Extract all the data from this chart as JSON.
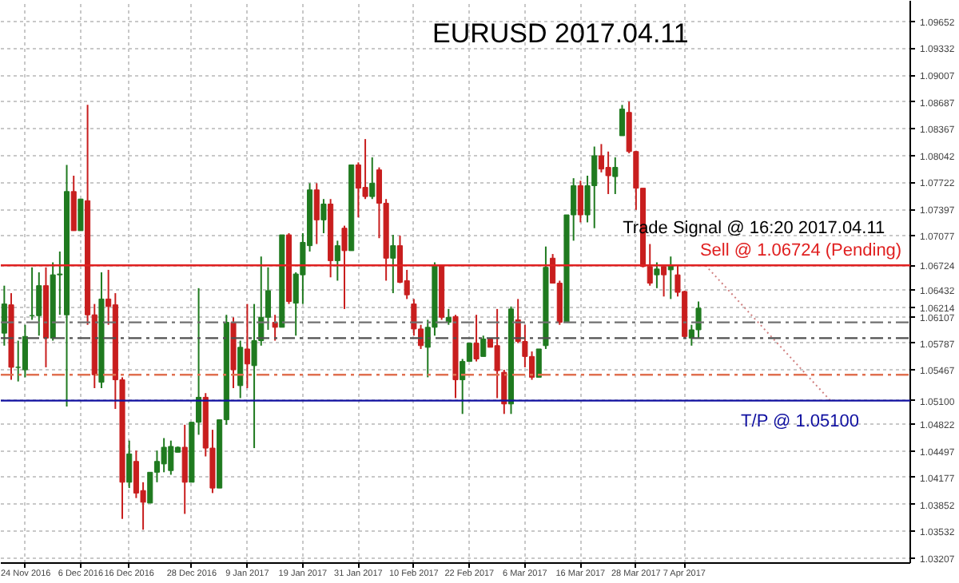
{
  "chart_data": {
    "type": "candlestick",
    "title": "EURUSD  2017.04.11",
    "categories": [
      null,
      null,
      null,
      "24 Nov 2016",
      null,
      null,
      null,
      null,
      null,
      null,
      null,
      "6 Dec 2016",
      null,
      null,
      null,
      null,
      null,
      null,
      "16 Dec 2016",
      null,
      null,
      null,
      null,
      null,
      null,
      null,
      null,
      "28 Dec 2016",
      null,
      null,
      null,
      null,
      null,
      null,
      null,
      "9 Jan 2017",
      null,
      null,
      null,
      null,
      null,
      null,
      null,
      "19 Jan 2017",
      null,
      null,
      null,
      null,
      null,
      null,
      null,
      "31 Jan 2017",
      null,
      null,
      null,
      null,
      null,
      null,
      null,
      "10 Feb 2017",
      null,
      null,
      null,
      null,
      null,
      null,
      null,
      "22 Feb 2017",
      null,
      null,
      null,
      null,
      null,
      null,
      null,
      "6 Mar 2017",
      null,
      null,
      null,
      null,
      null,
      null,
      null,
      "16 Mar 2017",
      null,
      null,
      null,
      null,
      null,
      null,
      null,
      "28 Mar 2017",
      null,
      null,
      null,
      null,
      null,
      null,
      "7 Apr 2017",
      null,
      null,
      null,
      null,
      null,
      null,
      null,
      null,
      null,
      null,
      null,
      null,
      null,
      null,
      null,
      null,
      null,
      null,
      null,
      null,
      null,
      null,
      null,
      null,
      null,
      null,
      null,
      null,
      null,
      null,
      null,
      null
    ],
    "ohlc": [
      [
        1.0591,
        1.0648,
        1.0576,
        1.0626
      ],
      [
        1.0625,
        1.0639,
        1.0535,
        1.055
      ],
      [
        1.055,
        1.0582,
        1.0533,
        1.055
      ],
      [
        1.0547,
        1.0601,
        1.0538,
        1.0587
      ],
      [
        1.0612,
        1.067,
        1.0607,
        1.0612
      ],
      [
        1.0612,
        1.0664,
        1.0588,
        1.0648
      ],
      [
        1.0648,
        1.067,
        1.055,
        1.0585
      ],
      [
        1.0585,
        1.0676,
        1.0582,
        1.0661
      ],
      [
        1.0661,
        1.0689,
        1.0613,
        1.0662
      ],
      [
        1.0613,
        1.0793,
        1.0503,
        1.0761
      ],
      [
        1.0761,
        1.078,
        1.0714,
        1.0714
      ],
      [
        1.0714,
        1.0752,
        1.0714,
        1.0752
      ],
      [
        1.075,
        1.0865,
        1.0601,
        1.0613
      ],
      [
        1.0613,
        1.0626,
        1.0525,
        1.0541
      ],
      [
        1.0532,
        1.0664,
        1.0525,
        1.0632
      ],
      [
        1.0632,
        1.0667,
        1.0601,
        1.0623
      ],
      [
        1.0625,
        1.0639,
        1.05,
        1.0535
      ],
      [
        1.0535,
        1.0538,
        1.0368,
        1.0412
      ],
      [
        1.0412,
        1.0462,
        1.0405,
        1.0446
      ],
      [
        1.0437,
        1.045,
        1.0393,
        1.0399
      ],
      [
        1.0402,
        1.0412,
        1.0355,
        1.0388
      ],
      [
        1.0387,
        1.0424,
        1.0387,
        1.0424
      ],
      [
        1.0424,
        1.045,
        1.0412,
        1.0437
      ],
      [
        1.0434,
        1.0465,
        1.0424,
        1.0454
      ],
      [
        1.0426,
        1.0462,
        1.0421,
        1.0455
      ],
      [
        1.0448,
        1.0455,
        1.0448,
        1.0454
      ],
      [
        1.0454,
        1.0481,
        1.0374,
        1.0412
      ],
      [
        1.0412,
        1.0484,
        1.0412,
        1.0484
      ],
      [
        1.0484,
        1.0645,
        1.0469,
        1.0514
      ],
      [
        1.0514,
        1.0519,
        1.0443,
        1.0453
      ],
      [
        1.0453,
        1.0475,
        1.0399,
        1.0405
      ],
      [
        1.0405,
        1.0487,
        1.0405,
        1.0487
      ],
      [
        1.0487,
        1.0613,
        1.0481,
        1.0604
      ],
      [
        1.0604,
        1.061,
        1.0525,
        1.0547
      ],
      [
        1.0528,
        1.0582,
        1.0513,
        1.0574
      ],
      [
        1.0572,
        1.0626,
        1.0525,
        1.0554
      ],
      [
        1.0552,
        1.0626,
        1.0453,
        1.0582
      ],
      [
        1.0582,
        1.0683,
        1.0576,
        1.061
      ],
      [
        1.061,
        1.067,
        1.0595,
        1.0642
      ],
      [
        1.0604,
        1.0613,
        1.0582,
        1.0598
      ],
      [
        1.0598,
        1.0709,
        1.0598,
        1.0709
      ],
      [
        1.0709,
        1.0711,
        1.0626,
        1.0629
      ],
      [
        1.0627,
        1.0664,
        1.0588,
        1.0662
      ],
      [
        1.0661,
        1.0711,
        1.0626,
        1.07
      ],
      [
        1.0696,
        1.0771,
        1.0689,
        1.0763
      ],
      [
        1.0763,
        1.0771,
        1.0698,
        1.0727
      ],
      [
        1.0727,
        1.0752,
        1.0711,
        1.0746
      ],
      [
        1.0746,
        1.0752,
        1.0658,
        1.0678
      ],
      [
        1.0678,
        1.0702,
        1.0654,
        1.0696
      ],
      [
        1.0717,
        1.072,
        1.062,
        1.069
      ],
      [
        1.069,
        1.0793,
        1.069,
        1.0793
      ],
      [
        1.0793,
        1.0796,
        1.073,
        1.0765
      ],
      [
        1.0766,
        1.0824,
        1.0752,
        1.0755
      ],
      [
        1.0755,
        1.0802,
        1.0752,
        1.0771
      ],
      [
        1.0787,
        1.079,
        1.0705,
        1.0747
      ],
      [
        1.0747,
        1.0752,
        1.0654,
        1.0681
      ],
      [
        1.0681,
        1.0709,
        1.0639,
        1.0696
      ],
      [
        1.0696,
        1.0708,
        1.0651,
        1.0652
      ],
      [
        1.0654,
        1.0667,
        1.0632,
        1.0637
      ],
      [
        1.0626,
        1.0632,
        1.0588,
        1.0596
      ],
      [
        1.0596,
        1.0601,
        1.0572,
        1.0576
      ],
      [
        1.0574,
        1.0607,
        1.0538,
        1.0598
      ],
      [
        1.0598,
        1.0676,
        1.0588,
        1.0673
      ],
      [
        1.0673,
        1.0673,
        1.0607,
        1.061
      ],
      [
        1.0604,
        1.062,
        1.0601,
        1.061
      ],
      [
        1.0611,
        1.0613,
        1.0513,
        1.0535
      ],
      [
        1.0535,
        1.056,
        1.0494,
        1.0557
      ],
      [
        1.0557,
        1.0579,
        1.0557,
        1.0579
      ],
      [
        1.0579,
        1.0613,
        1.0557,
        1.056
      ],
      [
        1.0563,
        1.0588,
        1.0563,
        1.0584
      ],
      [
        1.0584,
        1.0584,
        1.0574,
        1.0574
      ],
      [
        1.0576,
        1.062,
        1.0513,
        1.0546
      ],
      [
        1.0544,
        1.0547,
        1.0494,
        1.0506
      ],
      [
        1.0506,
        1.0623,
        1.0494,
        1.062
      ],
      [
        1.0607,
        1.0632,
        1.0579,
        1.0581
      ],
      [
        1.0581,
        1.0601,
        1.055,
        1.0563
      ],
      [
        1.0563,
        1.0569,
        1.0535,
        1.0538
      ],
      [
        1.0538,
        1.0572,
        1.0538,
        1.0572
      ],
      [
        1.0576,
        1.0695,
        1.0572,
        1.067
      ],
      [
        1.0681,
        1.0686,
        1.0651,
        1.0651
      ],
      [
        1.0651,
        1.0654,
        1.0601,
        1.0604
      ],
      [
        1.0604,
        1.0733,
        1.0604,
        1.0733
      ],
      [
        1.0733,
        1.0777,
        1.0702,
        1.0768
      ],
      [
        1.0768,
        1.0774,
        1.0724,
        1.0733
      ],
      [
        1.0733,
        1.078,
        1.0724,
        1.0768
      ],
      [
        1.0768,
        1.0815,
        1.0717,
        1.0804
      ],
      [
        1.0804,
        1.0818,
        1.0784,
        1.0788
      ],
      [
        1.079,
        1.0809,
        1.0758,
        1.078
      ],
      [
        1.0779,
        1.0802,
        1.0758,
        1.079
      ],
      [
        1.0828,
        1.0865,
        1.0828,
        1.086
      ],
      [
        1.0856,
        1.0869,
        1.0807,
        1.0809
      ],
      [
        1.0809,
        1.081,
        1.0739,
        1.0765
      ],
      [
        1.0765,
        1.0765,
        1.067,
        1.0671
      ],
      [
        1.0671,
        1.0698,
        1.0648,
        1.0651
      ],
      [
        1.0661,
        1.0676,
        1.0645,
        1.0668
      ],
      [
        1.0671,
        1.0673,
        1.0635,
        1.0661
      ],
      [
        1.0667,
        1.0683,
        1.0632,
        1.0673
      ],
      [
        1.0661,
        1.0673,
        1.0635,
        1.064
      ],
      [
        1.0641,
        1.0642,
        1.0585,
        1.0587
      ],
      [
        1.0585,
        1.0601,
        1.0576,
        1.0595
      ],
      [
        1.0595,
        1.0629,
        1.0585,
        1.0621
      ],
      null,
      null,
      null,
      null,
      null,
      null,
      null,
      null,
      null,
      null,
      null,
      null,
      null,
      null,
      null,
      null,
      null,
      null,
      null,
      null,
      null,
      null,
      null,
      null,
      null,
      null,
      null,
      null,
      null,
      null
    ],
    "series": [
      {
        "type": "line",
        "values": [
          null,
          null,
          null,
          null,
          null,
          null,
          null,
          null,
          null,
          null,
          null,
          null,
          null,
          null,
          null,
          null,
          null,
          null,
          null,
          null,
          null,
          null,
          null,
          null,
          null,
          null,
          null,
          null,
          null,
          null,
          null,
          null,
          null,
          null,
          null,
          null,
          null,
          null,
          null,
          null,
          null,
          null,
          null,
          null,
          null,
          null,
          null,
          null,
          null,
          null,
          null,
          null,
          null,
          null,
          null,
          null,
          null,
          null,
          null,
          null,
          null,
          null,
          null,
          null,
          null,
          null,
          null,
          null,
          null,
          null,
          null,
          null,
          null,
          null,
          null,
          null,
          null,
          null,
          null,
          null,
          null,
          null,
          null,
          null,
          null,
          null,
          null,
          null,
          null,
          null,
          null,
          null,
          null,
          null,
          null,
          null,
          null,
          null,
          null,
          null,
          null,
          1.06724,
          null,
          null,
          null,
          null,
          null,
          null,
          null,
          null,
          null,
          null,
          null,
          null,
          null,
          null,
          null,
          null,
          null,
          1.051,
          null,
          null,
          null,
          null,
          null,
          null,
          null,
          null,
          null,
          null,
          null
        ],
        "color": "#d08080",
        "line_style": "dotted"
      }
    ],
    "ylim": [
      1.0315,
      1.099
    ],
    "yticks": [
      1.03207,
      1.03532,
      1.03852,
      1.04177,
      1.04497,
      1.04822,
      {
        "value": 1.051,
        "label": "1.05100"
      },
      1.05467,
      1.05787,
      1.06107,
      1.06214,
      1.06432,
      1.06724,
      1.07077,
      1.07397,
      1.07722,
      1.08042,
      1.08367,
      1.08687,
      1.09007,
      1.09332,
      1.09652
    ],
    "ref_lines": [
      {
        "axis": "y",
        "value": 1.06724,
        "label": "Sell @ 1.06724 (Pending)",
        "color": "#e02020",
        "line_style": "solid"
      },
      {
        "axis": "y",
        "value": 1.051,
        "label": "T/P @ 1.05100",
        "color": "#1010a0",
        "line_style": "solid"
      },
      {
        "axis": "y",
        "value": 1.0604,
        "color": "#707070",
        "line_style": "dashed"
      },
      {
        "axis": "y",
        "value": 1.0585,
        "color": "#505050",
        "line_style": "dashed"
      },
      {
        "axis": "y",
        "value": 1.0541,
        "color": "#e07050",
        "line_style": "dashed"
      }
    ],
    "annotations": [
      "Trade Signal @ 16:20  2017.04.11"
    ],
    "grid": true
  }
}
